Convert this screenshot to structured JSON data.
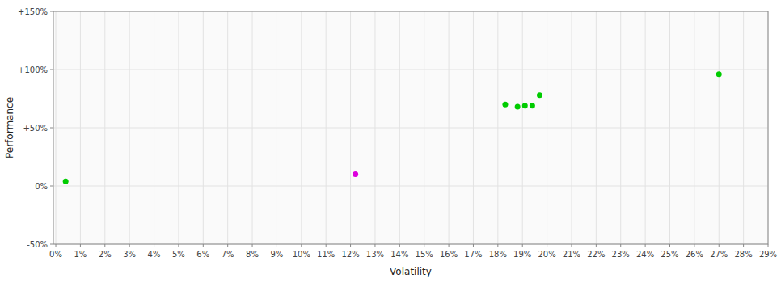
{
  "chart_data": {
    "type": "scatter",
    "xlabel": "Volatility",
    "ylabel": "Performance",
    "xlim": [
      -0.001,
      0.29
    ],
    "ylim": [
      -0.5,
      1.5
    ],
    "xticks": [
      {
        "value": 0.0,
        "label": "0%"
      },
      {
        "value": 0.01,
        "label": "1%"
      },
      {
        "value": 0.02,
        "label": "2%"
      },
      {
        "value": 0.03,
        "label": "3%"
      },
      {
        "value": 0.04,
        "label": "4%"
      },
      {
        "value": 0.05,
        "label": "5%"
      },
      {
        "value": 0.06,
        "label": "6%"
      },
      {
        "value": 0.07,
        "label": "7%"
      },
      {
        "value": 0.08,
        "label": "8%"
      },
      {
        "value": 0.09,
        "label": "9%"
      },
      {
        "value": 0.1,
        "label": "10%"
      },
      {
        "value": 0.11,
        "label": "11%"
      },
      {
        "value": 0.12,
        "label": "12%"
      },
      {
        "value": 0.13,
        "label": "13%"
      },
      {
        "value": 0.14,
        "label": "14%"
      },
      {
        "value": 0.15,
        "label": "15%"
      },
      {
        "value": 0.16,
        "label": "16%"
      },
      {
        "value": 0.17,
        "label": "17%"
      },
      {
        "value": 0.18,
        "label": "18%"
      },
      {
        "value": 0.19,
        "label": "19%"
      },
      {
        "value": 0.2,
        "label": "20%"
      },
      {
        "value": 0.21,
        "label": "21%"
      },
      {
        "value": 0.22,
        "label": "22%"
      },
      {
        "value": 0.23,
        "label": "23%"
      },
      {
        "value": 0.24,
        "label": "24%"
      },
      {
        "value": 0.25,
        "label": "25%"
      },
      {
        "value": 0.26,
        "label": "26%"
      },
      {
        "value": 0.27,
        "label": "27%"
      },
      {
        "value": 0.28,
        "label": "28%"
      },
      {
        "value": 0.29,
        "label": "29%"
      }
    ],
    "yticks": [
      {
        "value": -0.5,
        "label": "-50%"
      },
      {
        "value": 0.0,
        "label": "0%"
      },
      {
        "value": 0.5,
        "label": "+50%"
      },
      {
        "value": 1.0,
        "label": "+100%"
      },
      {
        "value": 1.5,
        "label": "+150%"
      }
    ],
    "grid": true,
    "series": [
      {
        "color": "#00cc00",
        "x": [
          0.004,
          0.183,
          0.188,
          0.191,
          0.194,
          0.197,
          0.27
        ],
        "values": [
          0.04,
          0.7,
          0.68,
          0.69,
          0.69,
          0.78,
          0.96
        ]
      },
      {
        "color": "#dd00dd",
        "x": [
          0.122
        ],
        "values": [
          0.1
        ]
      }
    ]
  }
}
